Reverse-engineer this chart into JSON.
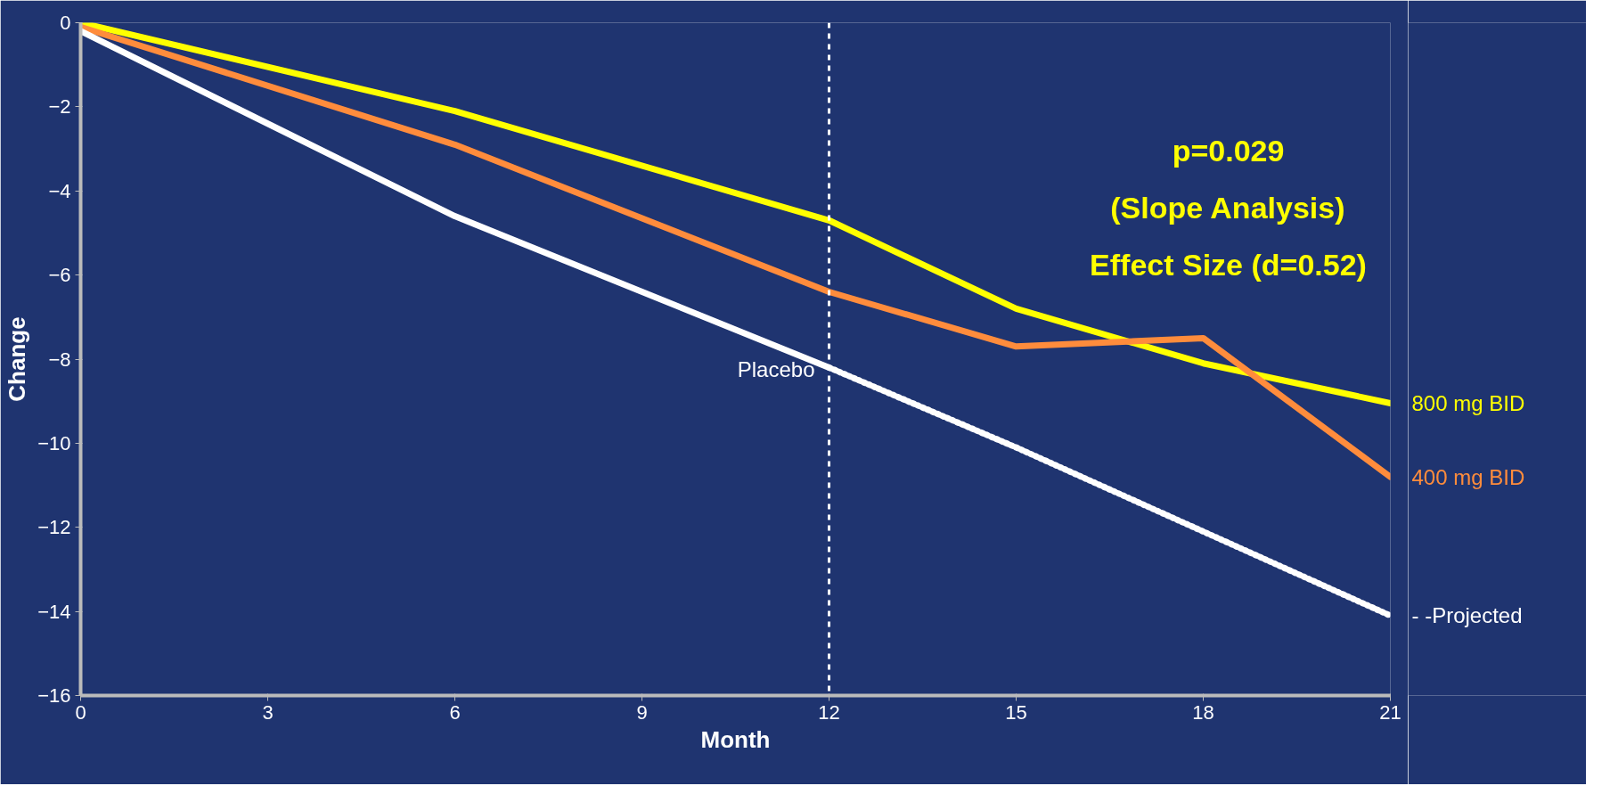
{
  "chart_data": {
    "type": "line",
    "xlabel": "Month",
    "ylabel": "Change",
    "xlim": [
      0,
      21
    ],
    "xticks": [
      0,
      3,
      6,
      9,
      12,
      15,
      18,
      21
    ],
    "ylim": [
      -16,
      0
    ],
    "yticks": [
      -16,
      -14,
      -12,
      -10,
      -8,
      -6,
      -4,
      -2,
      0
    ],
    "grid": false,
    "line_style": "solid",
    "series": [
      {
        "name": "800 mg BID",
        "color": "#ffff00",
        "x": [
          0,
          6,
          12,
          15,
          18,
          21
        ],
        "values": [
          0,
          -2.1,
          -4.7,
          -6.8,
          -8.1,
          -9.05
        ]
      },
      {
        "name": "400 mg BID",
        "color": "#ff8c3c",
        "x": [
          0,
          6,
          12,
          15,
          18,
          21
        ],
        "values": [
          -0.1,
          -2.9,
          -6.4,
          -7.7,
          -7.5,
          -10.8
        ]
      },
      {
        "name": "Placebo",
        "color": "#ffffff",
        "x": [
          0,
          6,
          12
        ],
        "values": [
          -0.2,
          -4.6,
          -8.2
        ]
      },
      {
        "name": "- -Projected",
        "color": "#ffffff",
        "line_style": "dotted",
        "x": [
          12,
          15,
          18,
          21
        ],
        "values": [
          -8.2,
          -10.1,
          -12.1,
          -14.1
        ]
      }
    ],
    "ref_lines": [
      {
        "axis": "x",
        "value": 12,
        "color": "#ffffff",
        "line_style": "dashed"
      }
    ],
    "annotations": [
      "p=0.029",
      "(Slope Analysis)",
      "Effect Size (d=0.52)"
    ]
  }
}
